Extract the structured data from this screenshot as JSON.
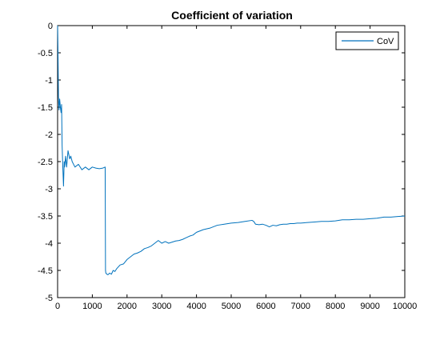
{
  "chart_data": {
    "type": "line",
    "title": "Coefficient of variation",
    "xlabel": "",
    "ylabel": "",
    "xlim": [
      0,
      10000
    ],
    "ylim": [
      -5,
      0
    ],
    "xticks": [
      0,
      1000,
      2000,
      3000,
      4000,
      5000,
      6000,
      7000,
      8000,
      9000,
      10000
    ],
    "yticks": [
      0,
      -0.5,
      -1,
      -1.5,
      -2,
      -2.5,
      -3,
      -3.5,
      -4,
      -4.5,
      -5
    ],
    "grid": false,
    "legend_position": "top-right",
    "series": [
      {
        "name": "CoV",
        "color": "#0072bd",
        "x": [
          1,
          10,
          25,
          40,
          60,
          80,
          100,
          115,
          130,
          150,
          170,
          190,
          200,
          210,
          230,
          260,
          300,
          350,
          380,
          420,
          500,
          600,
          700,
          800,
          900,
          1000,
          1100,
          1200,
          1300,
          1370,
          1380,
          1390,
          1420,
          1450,
          1500,
          1550,
          1600,
          1650,
          1700,
          1800,
          1900,
          2000,
          2100,
          2200,
          2300,
          2400,
          2500,
          2600,
          2700,
          2800,
          2900,
          3000,
          3100,
          3200,
          3300,
          3400,
          3500,
          3600,
          3700,
          3800,
          3900,
          4000,
          4200,
          4400,
          4600,
          4800,
          5000,
          5200,
          5400,
          5600,
          5650,
          5700,
          5800,
          5900,
          6000,
          6100,
          6200,
          6300,
          6400,
          6500,
          6600,
          6700,
          6800,
          6900,
          7000,
          7200,
          7400,
          7600,
          7800,
          8000,
          8200,
          8400,
          8600,
          8800,
          9000,
          9200,
          9400,
          9600,
          9800,
          10000
        ],
        "values": [
          0,
          -0.4,
          -1.3,
          -1.55,
          -1.35,
          -1.5,
          -1.6,
          -1.45,
          -2.2,
          -2.6,
          -2.95,
          -2.5,
          -2.6,
          -2.55,
          -2.4,
          -2.6,
          -2.3,
          -2.45,
          -2.4,
          -2.5,
          -2.6,
          -2.55,
          -2.65,
          -2.6,
          -2.65,
          -2.6,
          -2.62,
          -2.63,
          -2.62,
          -2.6,
          -4.5,
          -4.55,
          -4.57,
          -4.58,
          -4.55,
          -4.57,
          -4.5,
          -4.52,
          -4.47,
          -4.4,
          -4.38,
          -4.3,
          -4.25,
          -4.2,
          -4.18,
          -4.15,
          -4.1,
          -4.08,
          -4.05,
          -4.0,
          -3.95,
          -4.0,
          -3.97,
          -4.0,
          -3.98,
          -3.96,
          -3.95,
          -3.93,
          -3.9,
          -3.87,
          -3.85,
          -3.8,
          -3.75,
          -3.72,
          -3.67,
          -3.65,
          -3.63,
          -3.62,
          -3.6,
          -3.58,
          -3.6,
          -3.65,
          -3.66,
          -3.65,
          -3.67,
          -3.7,
          -3.67,
          -3.68,
          -3.66,
          -3.65,
          -3.65,
          -3.64,
          -3.64,
          -3.63,
          -3.63,
          -3.62,
          -3.61,
          -3.6,
          -3.6,
          -3.59,
          -3.57,
          -3.57,
          -3.56,
          -3.56,
          -3.55,
          -3.54,
          -3.52,
          -3.52,
          -3.51,
          -3.5
        ]
      }
    ]
  }
}
